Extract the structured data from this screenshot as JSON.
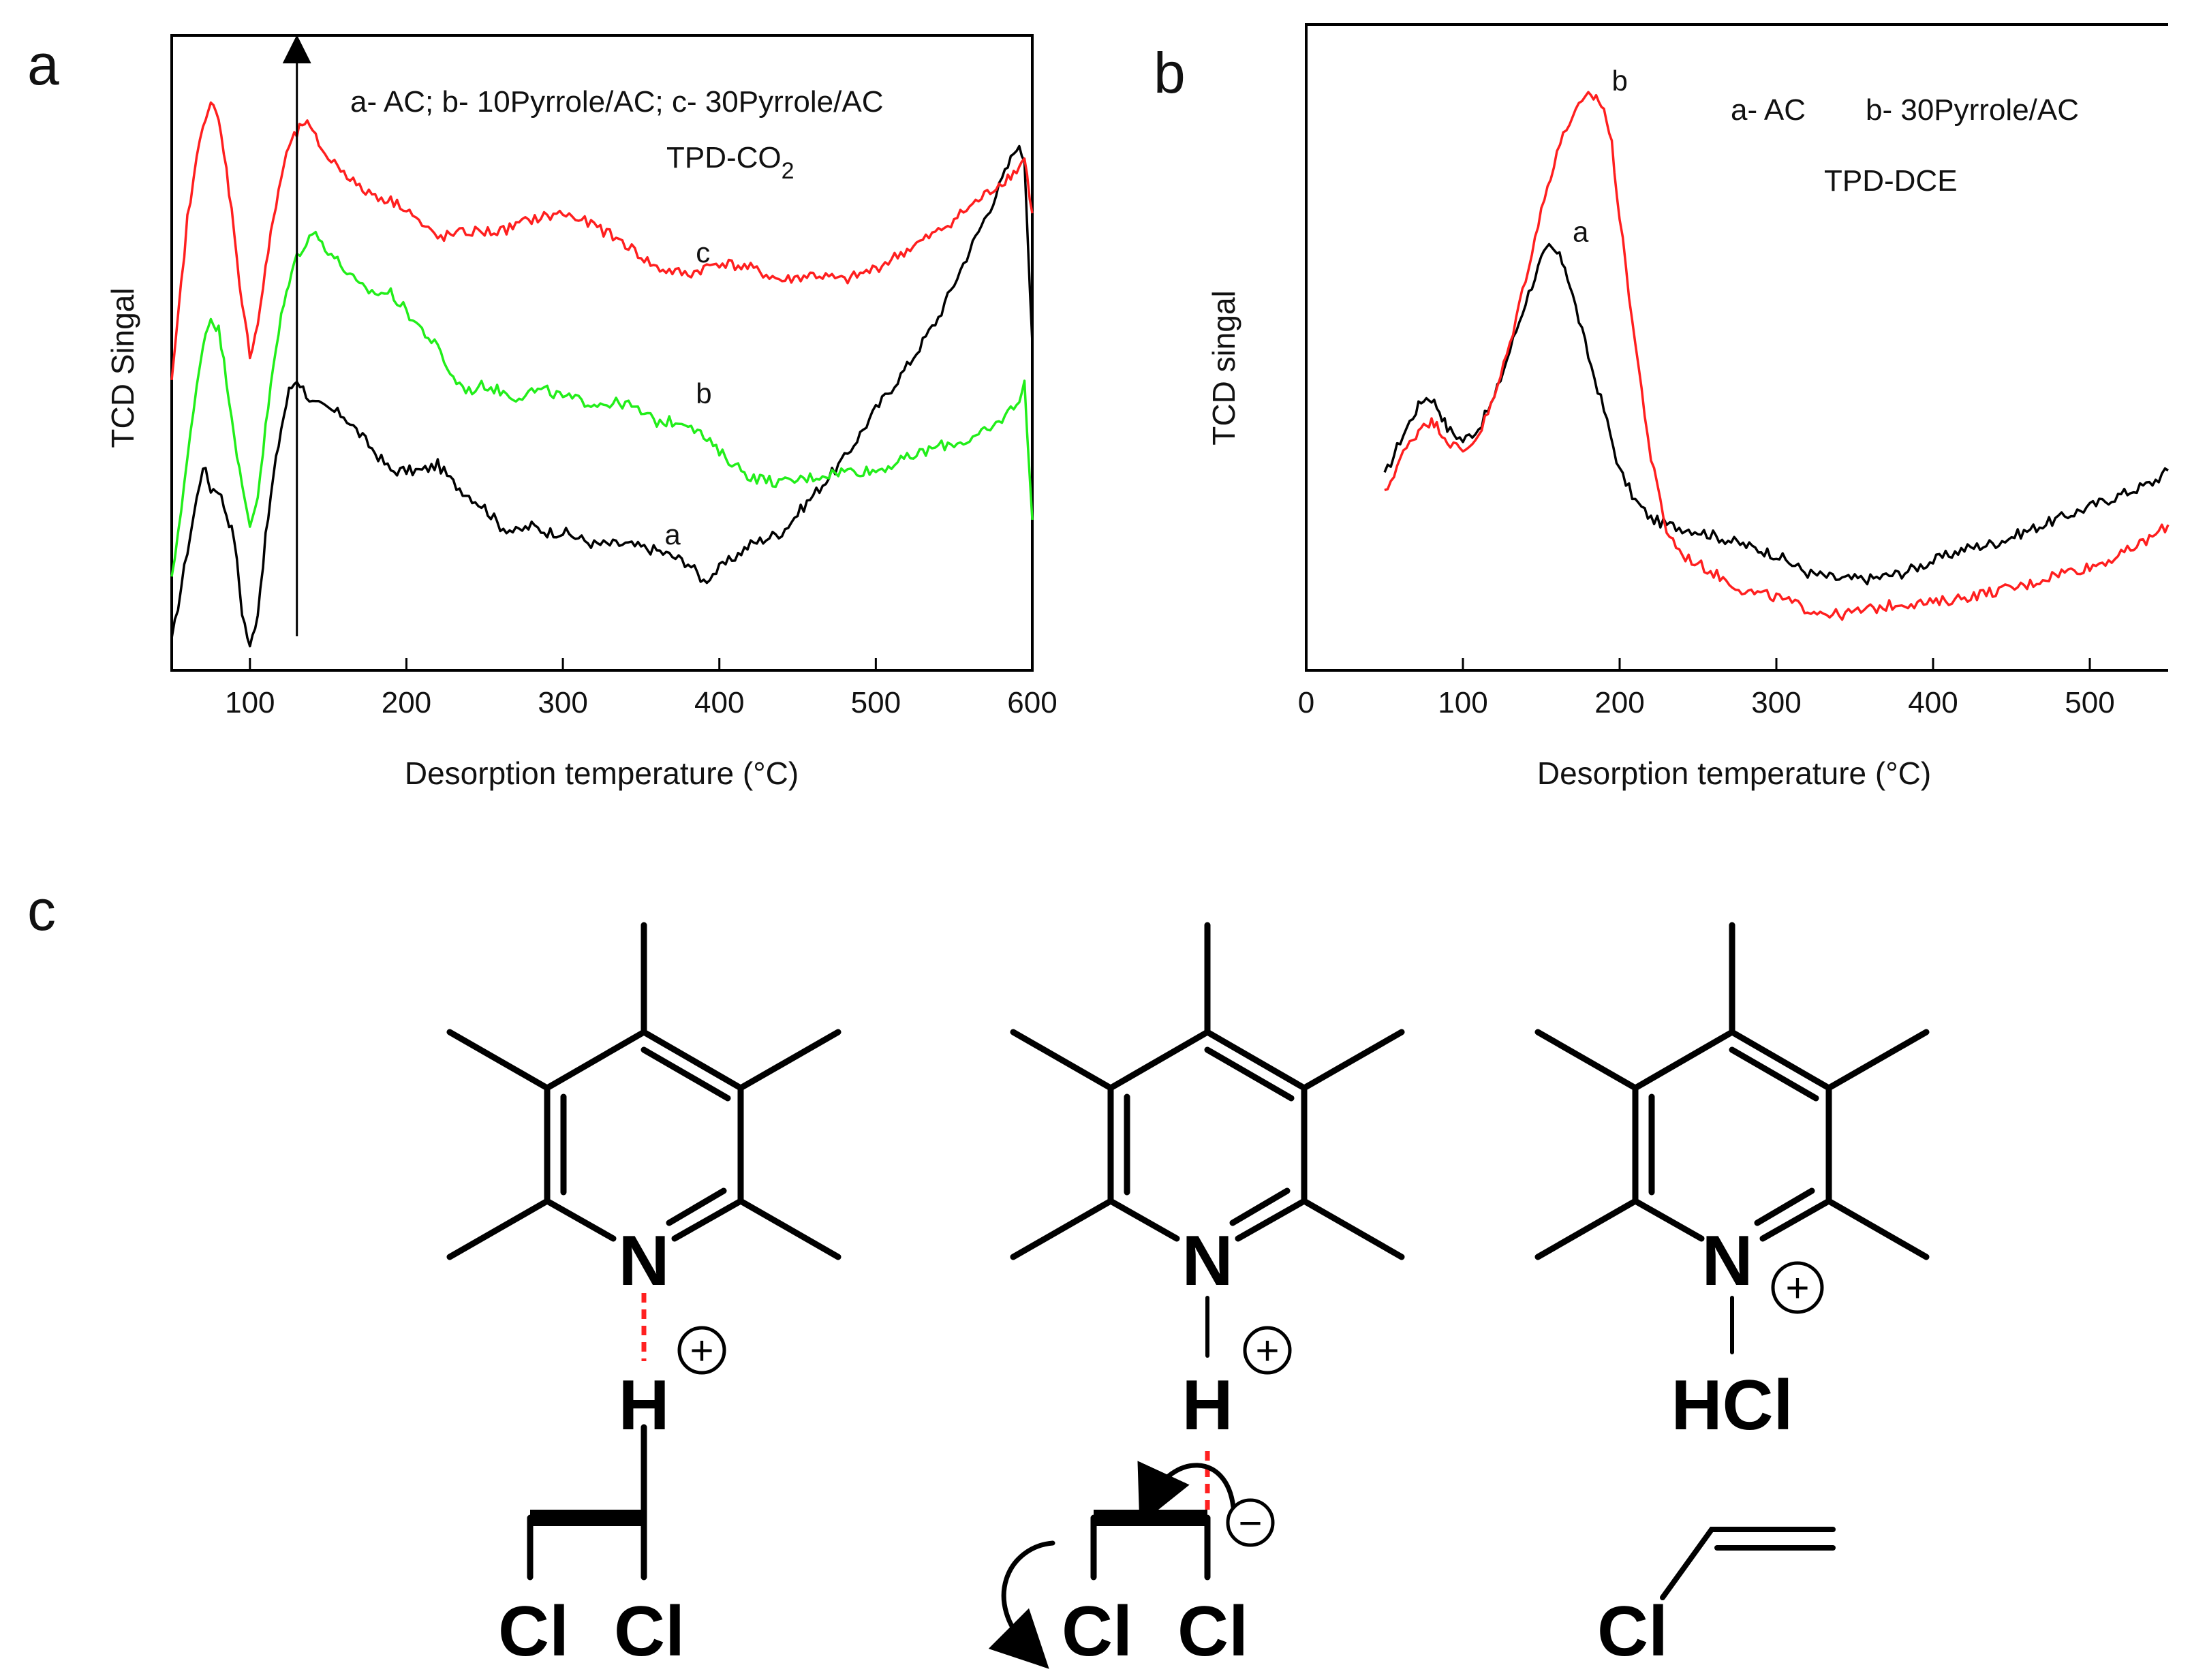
{
  "panels": {
    "a_letter": "a",
    "b_letter": "b",
    "c_letter": "c"
  },
  "colors": {
    "red": "#ff1f1f",
    "green": "#22ee1a",
    "black": "#000000"
  },
  "chart_data": [
    {
      "id": "a",
      "type": "line",
      "title": "TPD-CO",
      "title_subscript": "2",
      "legend_text": "a- AC; b- 10Pyrrole/AC; c-  30Pyrrole/AC",
      "xlabel": "Desorption temperature (°C)",
      "ylabel": "TCD Singal",
      "xlim": [
        50,
        600
      ],
      "ylim": [
        0,
        1
      ],
      "xticks": [
        100,
        200,
        300,
        400,
        500,
        600
      ],
      "yticks_shown": false,
      "arrow_at_x": 130,
      "series": [
        {
          "name": "a",
          "label": "a",
          "color": "#000000",
          "label_at": [
            365,
            0.19
          ],
          "x": [
            50,
            60,
            70,
            75,
            80,
            85,
            90,
            95,
            100,
            105,
            110,
            115,
            120,
            125,
            130,
            140,
            150,
            160,
            170,
            180,
            190,
            200,
            210,
            220,
            230,
            240,
            250,
            260,
            270,
            280,
            290,
            300,
            320,
            340,
            360,
            380,
            390,
            400,
            420,
            440,
            460,
            480,
            500,
            520,
            540,
            560,
            575,
            590,
            595,
            600
          ],
          "y": [
            0.03,
            0.18,
            0.32,
            0.28,
            0.28,
            0.24,
            0.2,
            0.08,
            0.02,
            0.08,
            0.2,
            0.3,
            0.38,
            0.44,
            0.46,
            0.42,
            0.41,
            0.4,
            0.37,
            0.34,
            0.31,
            0.31,
            0.31,
            0.32,
            0.29,
            0.27,
            0.25,
            0.22,
            0.21,
            0.22,
            0.21,
            0.21,
            0.19,
            0.19,
            0.18,
            0.16,
            0.13,
            0.15,
            0.19,
            0.21,
            0.27,
            0.33,
            0.41,
            0.48,
            0.56,
            0.67,
            0.75,
            0.84,
            0.82,
            0.52
          ]
        },
        {
          "name": "b",
          "label": "b",
          "color": "#22ee1a",
          "label_at": [
            385,
            0.42
          ],
          "x": [
            50,
            60,
            70,
            75,
            80,
            85,
            90,
            95,
            100,
            105,
            110,
            115,
            120,
            125,
            130,
            140,
            150,
            160,
            170,
            180,
            190,
            200,
            210,
            220,
            230,
            240,
            250,
            260,
            270,
            280,
            290,
            300,
            320,
            340,
            360,
            380,
            400,
            420,
            440,
            460,
            480,
            500,
            520,
            540,
            560,
            575,
            590,
            595,
            600
          ],
          "y": [
            0.13,
            0.33,
            0.52,
            0.56,
            0.54,
            0.46,
            0.37,
            0.28,
            0.22,
            0.27,
            0.38,
            0.48,
            0.56,
            0.62,
            0.66,
            0.7,
            0.67,
            0.64,
            0.61,
            0.6,
            0.6,
            0.57,
            0.54,
            0.51,
            0.46,
            0.44,
            0.45,
            0.44,
            0.43,
            0.44,
            0.44,
            0.43,
            0.42,
            0.42,
            0.39,
            0.39,
            0.34,
            0.3,
            0.29,
            0.3,
            0.31,
            0.31,
            0.33,
            0.35,
            0.36,
            0.38,
            0.42,
            0.45,
            0.23
          ]
        },
        {
          "name": "c",
          "label": "c",
          "color": "#ff1f1f",
          "label_at": [
            385,
            0.65
          ],
          "x": [
            50,
            60,
            70,
            75,
            80,
            85,
            90,
            95,
            100,
            105,
            110,
            115,
            120,
            125,
            130,
            135,
            140,
            150,
            160,
            170,
            180,
            190,
            200,
            210,
            220,
            240,
            260,
            280,
            300,
            320,
            340,
            360,
            380,
            400,
            420,
            440,
            460,
            480,
            500,
            520,
            540,
            560,
            575,
            590,
            595,
            600
          ],
          "y": [
            0.45,
            0.72,
            0.88,
            0.91,
            0.88,
            0.8,
            0.7,
            0.58,
            0.5,
            0.55,
            0.64,
            0.72,
            0.79,
            0.84,
            0.86,
            0.88,
            0.86,
            0.82,
            0.8,
            0.77,
            0.76,
            0.75,
            0.74,
            0.71,
            0.69,
            0.7,
            0.7,
            0.72,
            0.73,
            0.71,
            0.68,
            0.64,
            0.63,
            0.65,
            0.64,
            0.62,
            0.63,
            0.62,
            0.64,
            0.67,
            0.7,
            0.74,
            0.77,
            0.8,
            0.82,
            0.73
          ]
        }
      ]
    },
    {
      "id": "b",
      "type": "line",
      "title": "TPD-DCE",
      "legend_a": "a- AC",
      "legend_b": "b- 30Pyrrole/AC",
      "xlabel": "Desorption temperature (°C)",
      "ylabel": "TCD singal",
      "xlim": [
        0,
        550
      ],
      "ylim": [
        0,
        1
      ],
      "xticks": [
        0,
        100,
        200,
        300,
        400,
        500
      ],
      "yticks_shown": false,
      "series": [
        {
          "name": "a",
          "label": "a",
          "color": "#000000",
          "label_at": [
            170,
            0.69
          ],
          "x": [
            50,
            60,
            70,
            75,
            80,
            85,
            90,
            100,
            110,
            120,
            130,
            140,
            150,
            155,
            160,
            165,
            170,
            180,
            190,
            200,
            210,
            220,
            230,
            250,
            275,
            300,
            320,
            340,
            360,
            380,
            400,
            420,
            440,
            460,
            480,
            500,
            520,
            540,
            550
          ],
          "y": [
            0.3,
            0.36,
            0.41,
            0.43,
            0.43,
            0.41,
            0.38,
            0.36,
            0.38,
            0.43,
            0.51,
            0.59,
            0.66,
            0.68,
            0.67,
            0.65,
            0.6,
            0.5,
            0.41,
            0.31,
            0.26,
            0.23,
            0.22,
            0.21,
            0.19,
            0.17,
            0.14,
            0.13,
            0.13,
            0.14,
            0.16,
            0.18,
            0.19,
            0.21,
            0.23,
            0.25,
            0.27,
            0.29,
            0.31
          ]
        },
        {
          "name": "b",
          "label": "b",
          "color": "#ff1f1f",
          "label_at": [
            195,
            0.94
          ],
          "x": [
            50,
            60,
            70,
            75,
            80,
            85,
            90,
            100,
            110,
            120,
            130,
            140,
            150,
            160,
            170,
            180,
            185,
            190,
            195,
            200,
            210,
            220,
            230,
            240,
            260,
            280,
            300,
            320,
            340,
            360,
            380,
            400,
            420,
            440,
            460,
            480,
            500,
            520,
            540,
            550
          ],
          "y": [
            0.27,
            0.33,
            0.37,
            0.39,
            0.39,
            0.38,
            0.36,
            0.34,
            0.37,
            0.43,
            0.52,
            0.63,
            0.74,
            0.84,
            0.9,
            0.93,
            0.93,
            0.91,
            0.85,
            0.73,
            0.52,
            0.33,
            0.21,
            0.17,
            0.14,
            0.11,
            0.1,
            0.08,
            0.07,
            0.08,
            0.09,
            0.09,
            0.1,
            0.11,
            0.12,
            0.14,
            0.15,
            0.17,
            0.2,
            0.22
          ]
        }
      ]
    }
  ],
  "scheme": {
    "structures": [
      {
        "ring_N": "N",
        "H": "H",
        "plus": "+",
        "Cl_left": "Cl",
        "Cl_right": "Cl"
      },
      {
        "ring_N": "N",
        "H": "H",
        "plus": "+",
        "minus": "−",
        "Cl_left": "Cl",
        "Cl_right": "Cl"
      },
      {
        "ring_N": "N",
        "plus": "+",
        "HCl": "HCl",
        "Cl": "Cl"
      }
    ]
  }
}
